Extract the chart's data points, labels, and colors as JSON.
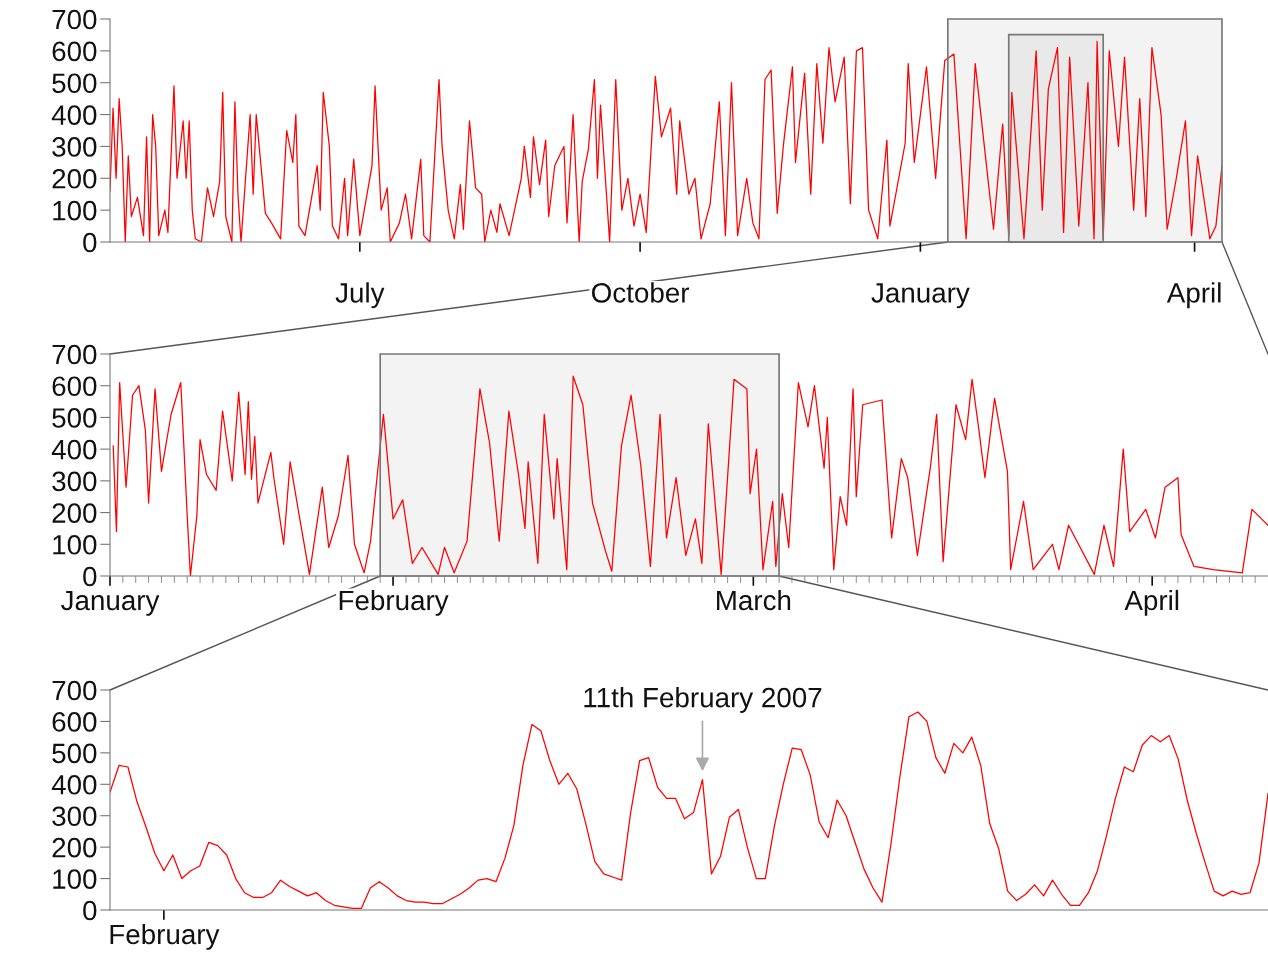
{
  "chart_data": [
    {
      "type": "line",
      "xlim": [
        "2006-04-10",
        "2007-04-10"
      ],
      "ylim": [
        0,
        700
      ],
      "yticks": [
        0,
        100,
        200,
        300,
        400,
        500,
        600,
        700
      ],
      "xticks": [
        {
          "value": "2006-07-01",
          "label": "July"
        },
        {
          "value": "2006-10-01",
          "label": "October"
        },
        {
          "value": "2007-01-01",
          "label": "January"
        },
        {
          "value": "2007-04-01",
          "label": "April"
        }
      ],
      "bands": [
        {
          "axis": "x",
          "from": "2007-01-10",
          "to": "2007-04-10",
          "color": "#f3f3f3"
        },
        {
          "axis": "x",
          "from": "2007-01-30",
          "to": "2007-03-02",
          "color": "#e9e9e9"
        }
      ],
      "series": [
        {
          "color": "#ff0000",
          "x": [
            "2006-04-10",
            "2006-04-11",
            "2006-04-12",
            "2006-04-13",
            "2006-04-14",
            "2006-04-15",
            "2006-04-16",
            "2006-04-17",
            "2006-04-19",
            "2006-04-21",
            "2006-04-22",
            "2006-04-23",
            "2006-04-24",
            "2006-04-25",
            "2006-04-26",
            "2006-04-28",
            "2006-04-29",
            "2006-05-01",
            "2006-05-02",
            "2006-05-04",
            "2006-05-05",
            "2006-05-06",
            "2006-05-07",
            "2006-05-08",
            "2006-05-10",
            "2006-05-12",
            "2006-05-14",
            "2006-05-16",
            "2006-05-17",
            "2006-05-18",
            "2006-05-20",
            "2006-05-21",
            "2006-05-22",
            "2006-05-23",
            "2006-05-26",
            "2006-05-27",
            "2006-05-28",
            "2006-05-31",
            "2006-06-02",
            "2006-06-05",
            "2006-06-07",
            "2006-06-09",
            "2006-06-10",
            "2006-06-11",
            "2006-06-13",
            "2006-06-17",
            "2006-06-18",
            "2006-06-19",
            "2006-06-21",
            "2006-06-22",
            "2006-06-24",
            "2006-06-26",
            "2006-06-27",
            "2006-06-29",
            "2006-07-01",
            "2006-07-05",
            "2006-07-06",
            "2006-07-08",
            "2006-07-10",
            "2006-07-11",
            "2006-07-14",
            "2006-07-16",
            "2006-07-18",
            "2006-07-21",
            "2006-07-22",
            "2006-07-24",
            "2006-07-27",
            "2006-07-28",
            "2006-07-30",
            "2006-08-01",
            "2006-08-03",
            "2006-08-04",
            "2006-08-06",
            "2006-08-08",
            "2006-08-10",
            "2006-08-11",
            "2006-08-13",
            "2006-08-15",
            "2006-08-16",
            "2006-08-19",
            "2006-08-23",
            "2006-08-24",
            "2006-08-26",
            "2006-08-27",
            "2006-08-29",
            "2006-08-31",
            "2006-09-01",
            "2006-09-03",
            "2006-09-06",
            "2006-09-07",
            "2006-09-09",
            "2006-09-11",
            "2006-09-12",
            "2006-09-14",
            "2006-09-16",
            "2006-09-17",
            "2006-09-18",
            "2006-09-21",
            "2006-09-23",
            "2006-09-25",
            "2006-09-27",
            "2006-09-29",
            "2006-10-01",
            "2006-10-03",
            "2006-10-06",
            "2006-10-08",
            "2006-10-11",
            "2006-10-13",
            "2006-10-14",
            "2006-10-17",
            "2006-10-19",
            "2006-10-21",
            "2006-10-24",
            "2006-10-27",
            "2006-10-29",
            "2006-10-31",
            "2006-11-02",
            "2006-11-05",
            "2006-11-07",
            "2006-11-09",
            "2006-11-11",
            "2006-11-13",
            "2006-11-15",
            "2006-11-17",
            "2006-11-20",
            "2006-11-21",
            "2006-11-24",
            "2006-11-26",
            "2006-11-28",
            "2006-11-30",
            "2006-12-02",
            "2006-12-04",
            "2006-12-07",
            "2006-12-09",
            "2006-12-11",
            "2006-12-13",
            "2006-12-15",
            "2006-12-18",
            "2006-12-21",
            "2006-12-22",
            "2006-12-27",
            "2006-12-28",
            "2006-12-30",
            "2007-01-03",
            "2007-01-06",
            "2007-01-09",
            "2007-01-12",
            "2007-01-14",
            "2007-01-16",
            "2007-01-19",
            "2007-01-22",
            "2007-01-25",
            "2007-01-28",
            "2007-01-30",
            "2007-01-31",
            "2007-02-04",
            "2007-02-08",
            "2007-02-10",
            "2007-02-12",
            "2007-02-15",
            "2007-02-17",
            "2007-02-19",
            "2007-02-22",
            "2007-02-25",
            "2007-02-27",
            "2007-02-28",
            "2007-03-02",
            "2007-03-04",
            "2007-03-07",
            "2007-03-09",
            "2007-03-12",
            "2007-03-14",
            "2007-03-16",
            "2007-03-18",
            "2007-03-21",
            "2007-03-23",
            "2007-03-26",
            "2007-03-29",
            "2007-03-31",
            "2007-04-02",
            "2007-04-06",
            "2007-04-08",
            "2007-04-10"
          ],
          "values": [
            160,
            420,
            200,
            450,
            300,
            0,
            270,
            80,
            140,
            20,
            330,
            0,
            400,
            300,
            20,
            100,
            30,
            490,
            200,
            380,
            200,
            380,
            100,
            10,
            0,
            170,
            80,
            190,
            470,
            80,
            0,
            440,
            150,
            0,
            400,
            150,
            400,
            90,
            60,
            10,
            350,
            250,
            400,
            50,
            20,
            240,
            100,
            470,
            300,
            50,
            10,
            200,
            20,
            260,
            20,
            240,
            490,
            100,
            170,
            0,
            60,
            150,
            10,
            260,
            20,
            0,
            510,
            300,
            100,
            10,
            180,
            40,
            380,
            170,
            150,
            0,
            100,
            30,
            120,
            20,
            200,
            300,
            140,
            330,
            180,
            320,
            80,
            240,
            300,
            60,
            400,
            0,
            190,
            290,
            510,
            200,
            430,
            0,
            510,
            100,
            200,
            50,
            150,
            30,
            520,
            330,
            420,
            150,
            380,
            150,
            200,
            10,
            120,
            440,
            20,
            500,
            20,
            200,
            60,
            10,
            510,
            540,
            90,
            300,
            550,
            250,
            530,
            150,
            560,
            310,
            610,
            440,
            580,
            120,
            600,
            610,
            100,
            10,
            320,
            50,
            310,
            560,
            250,
            550,
            200,
            570,
            590,
            300,
            10,
            560,
            300,
            40,
            370,
            20,
            470,
            10,
            600,
            100,
            480,
            610,
            30,
            580,
            50,
            500,
            10,
            630,
            10,
            600,
            300,
            580,
            100,
            450,
            80,
            610,
            400,
            40,
            200,
            380,
            20,
            270,
            10,
            50,
            240
          ]
        }
      ]
    },
    {
      "type": "line",
      "xlim": [
        "2007-01-10",
        "2007-04-10"
      ],
      "ylim": [
        0,
        700
      ],
      "yticks": [
        0,
        100,
        200,
        300,
        400,
        500,
        600,
        700
      ],
      "xticks": [
        {
          "value": "2007-01-10",
          "label": "January"
        },
        {
          "value": "2007-01-11",
          "label": null
        },
        {
          "value": "2007-01-12",
          "label": null
        },
        {
          "value": "2007-01-13",
          "label": null
        },
        {
          "value": "2007-01-14",
          "label": null
        },
        {
          "value": "2007-01-15",
          "label": null
        },
        {
          "value": "2007-01-16",
          "label": null
        },
        {
          "value": "2007-01-17",
          "label": null
        },
        {
          "value": "2007-01-18",
          "label": null
        },
        {
          "value": "2007-01-19",
          "label": null
        },
        {
          "value": "2007-01-20",
          "label": null
        },
        {
          "value": "2007-01-21",
          "label": null
        },
        {
          "value": "2007-01-22",
          "label": null
        },
        {
          "value": "2007-01-23",
          "label": null
        },
        {
          "value": "2007-01-24",
          "label": null
        },
        {
          "value": "2007-01-25",
          "label": null
        },
        {
          "value": "2007-01-26",
          "label": null
        },
        {
          "value": "2007-01-27",
          "label": null
        },
        {
          "value": "2007-01-28",
          "label": null
        },
        {
          "value": "2007-01-29",
          "label": null
        },
        {
          "value": "2007-01-30",
          "label": null
        },
        {
          "value": "2007-01-31",
          "label": null
        },
        {
          "value": "2007-02-01",
          "label": "February"
        },
        {
          "value": "2007-02-02",
          "label": null
        },
        {
          "value": "2007-02-03",
          "label": null
        },
        {
          "value": "2007-02-04",
          "label": null
        },
        {
          "value": "2007-02-05",
          "label": null
        },
        {
          "value": "2007-02-06",
          "label": null
        },
        {
          "value": "2007-02-07",
          "label": null
        },
        {
          "value": "2007-02-08",
          "label": null
        },
        {
          "value": "2007-02-09",
          "label": null
        },
        {
          "value": "2007-02-10",
          "label": null
        },
        {
          "value": "2007-02-11",
          "label": null
        },
        {
          "value": "2007-02-12",
          "label": null
        },
        {
          "value": "2007-02-13",
          "label": null
        },
        {
          "value": "2007-02-14",
          "label": null
        },
        {
          "value": "2007-02-15",
          "label": null
        },
        {
          "value": "2007-02-16",
          "label": null
        },
        {
          "value": "2007-02-17",
          "label": null
        },
        {
          "value": "2007-02-18",
          "label": null
        },
        {
          "value": "2007-02-19",
          "label": null
        },
        {
          "value": "2007-02-20",
          "label": null
        },
        {
          "value": "2007-02-21",
          "label": null
        },
        {
          "value": "2007-02-22",
          "label": null
        },
        {
          "value": "2007-02-23",
          "label": null
        },
        {
          "value": "2007-02-24",
          "label": null
        },
        {
          "value": "2007-02-25",
          "label": null
        },
        {
          "value": "2007-02-26",
          "label": null
        },
        {
          "value": "2007-02-27",
          "label": null
        },
        {
          "value": "2007-02-28",
          "label": null
        },
        {
          "value": "2007-03-01",
          "label": "March"
        },
        {
          "value": "2007-03-02",
          "label": null
        },
        {
          "value": "2007-03-03",
          "label": null
        },
        {
          "value": "2007-03-04",
          "label": null
        },
        {
          "value": "2007-03-05",
          "label": null
        },
        {
          "value": "2007-03-06",
          "label": null
        },
        {
          "value": "2007-03-07",
          "label": null
        },
        {
          "value": "2007-03-08",
          "label": null
        },
        {
          "value": "2007-03-09",
          "label": null
        },
        {
          "value": "2007-03-10",
          "label": null
        },
        {
          "value": "2007-03-11",
          "label": null
        },
        {
          "value": "2007-03-12",
          "label": null
        },
        {
          "value": "2007-03-13",
          "label": null
        },
        {
          "value": "2007-03-14",
          "label": null
        },
        {
          "value": "2007-03-15",
          "label": null
        },
        {
          "value": "2007-03-16",
          "label": null
        },
        {
          "value": "2007-03-17",
          "label": null
        },
        {
          "value": "2007-03-18",
          "label": null
        },
        {
          "value": "2007-03-19",
          "label": null
        },
        {
          "value": "2007-03-20",
          "label": null
        },
        {
          "value": "2007-03-21",
          "label": null
        },
        {
          "value": "2007-03-22",
          "label": null
        },
        {
          "value": "2007-03-23",
          "label": null
        },
        {
          "value": "2007-03-24",
          "label": null
        },
        {
          "value": "2007-03-25",
          "label": null
        },
        {
          "value": "2007-03-26",
          "label": null
        },
        {
          "value": "2007-03-27",
          "label": null
        },
        {
          "value": "2007-03-28",
          "label": null
        },
        {
          "value": "2007-03-29",
          "label": null
        },
        {
          "value": "2007-03-30",
          "label": null
        },
        {
          "value": "2007-03-31",
          "label": null
        },
        {
          "value": "2007-04-01",
          "label": "April"
        },
        {
          "value": "2007-04-02",
          "label": null
        },
        {
          "value": "2007-04-03",
          "label": null
        },
        {
          "value": "2007-04-04",
          "label": null
        },
        {
          "value": "2007-04-05",
          "label": null
        },
        {
          "value": "2007-04-06",
          "label": null
        },
        {
          "value": "2007-04-07",
          "label": null
        },
        {
          "value": "2007-04-08",
          "label": null
        },
        {
          "value": "2007-04-09",
          "label": null
        }
      ],
      "bands": [
        {
          "axis": "x",
          "from": "2007-01-31",
          "to": "2007-03-03",
          "color": "#f3f3f3"
        }
      ],
      "series": [
        {
          "color": "#ff0000",
          "x": [
            "2007-01-10T06:00",
            "2007-01-10T12:00",
            "2007-01-10T18:00",
            "2007-01-11T06:00",
            "2007-01-11T18:00",
            "2007-01-12T06:00",
            "2007-01-12T18:00",
            "2007-01-13T00:00",
            "2007-01-13T12:00",
            "2007-01-14T00:00",
            "2007-01-14T18:00",
            "2007-01-15T12:00",
            "2007-01-16T00:00",
            "2007-01-16T06:00",
            "2007-01-16T18:00",
            "2007-01-17T00:00",
            "2007-01-17T12:00",
            "2007-01-18T06:00",
            "2007-01-18T18:00",
            "2007-01-19T12:00",
            "2007-01-20T00:00",
            "2007-01-20T12:00",
            "2007-01-20T18:00",
            "2007-01-21T00:00",
            "2007-01-21T06:00",
            "2007-01-21T12:00",
            "2007-01-22T12:00",
            "2007-01-22T18:00",
            "2007-01-23T12:00",
            "2007-01-24T00:00",
            "2007-01-24T18:00",
            "2007-01-25T12:00",
            "2007-01-26T12:00",
            "2007-01-27T00:00",
            "2007-01-27T18:00",
            "2007-01-28T12:00",
            "2007-01-29T00:00",
            "2007-01-29T18:00",
            "2007-01-30T06:00",
            "2007-01-31T06:00",
            "2007-02-01T00:00",
            "2007-02-01T18:00",
            "2007-02-02T12:00",
            "2007-02-03T06:00",
            "2007-02-04T12:00",
            "2007-02-05T00:00",
            "2007-02-05T18:00",
            "2007-02-06T18:00",
            "2007-02-07T18:00",
            "2007-02-08T12:00",
            "2007-02-09T06:00",
            "2007-02-10T00:00",
            "2007-02-10T18:00",
            "2007-02-11T06:00",
            "2007-02-11T12:00",
            "2007-02-12T06:00",
            "2007-02-12T18:00",
            "2007-02-13T12:00",
            "2007-02-13T18:00",
            "2007-02-14T12:00",
            "2007-02-15T00:00",
            "2007-02-15T18:00",
            "2007-02-16T12:00",
            "2007-02-17T12:00",
            "2007-02-18T00:00",
            "2007-02-18T18:00",
            "2007-02-19T12:00",
            "2007-02-20T06:00",
            "2007-02-21T00:00",
            "2007-02-21T18:00",
            "2007-02-22T06:00",
            "2007-02-23T00:00",
            "2007-02-23T18:00",
            "2007-02-24T12:00",
            "2007-02-25T00:00",
            "2007-02-25T12:00",
            "2007-02-26T12:00",
            "2007-02-27T12:00",
            "2007-02-28T12:00",
            "2007-02-28T18:00",
            "2007-03-01T06:00",
            "2007-03-01T18:00",
            "2007-03-02T12:00",
            "2007-03-02T18:00",
            "2007-03-03T06:00",
            "2007-03-03T18:00",
            "2007-03-04T12:00",
            "2007-03-05T06:00",
            "2007-03-05T18:00",
            "2007-03-06T12:00",
            "2007-03-06T18:00",
            "2007-03-07T06:00",
            "2007-03-07T18:00",
            "2007-03-08T06:00",
            "2007-03-08T18:00",
            "2007-03-09T00:00",
            "2007-03-09T12:00",
            "2007-03-11T00:00",
            "2007-03-11T18:00",
            "2007-03-12T12:00",
            "2007-03-13T00:00",
            "2007-03-13T18:00",
            "2007-03-14T18:00",
            "2007-03-15T06:00",
            "2007-03-15T18:00",
            "2007-03-16T18:00",
            "2007-03-17T12:00",
            "2007-03-18T00:00",
            "2007-03-18T12:00",
            "2007-03-19T00:00",
            "2007-03-19T18:00",
            "2007-03-20T18:00",
            "2007-03-21T00:00",
            "2007-03-22T00:00",
            "2007-03-22T18:00",
            "2007-03-24T06:00",
            "2007-03-24T18:00",
            "2007-03-25T12:00",
            "2007-03-27T12:00",
            "2007-03-28T06:00",
            "2007-03-29T00:00",
            "2007-03-29T18:00",
            "2007-03-30T06:00",
            "2007-03-31T12:00",
            "2007-04-01T06:00",
            "2007-04-02T00:00",
            "2007-04-03T00:00",
            "2007-04-03T06:00",
            "2007-04-04T06:00",
            "2007-04-05T18:00",
            "2007-04-08T00:00",
            "2007-04-08T18:00",
            "2007-04-09T12:00",
            "2007-04-10T00:00"
          ],
          "values": [
            410,
            140,
            610,
            280,
            570,
            600,
            460,
            230,
            590,
            330,
            510,
            610,
            190,
            0,
            190,
            430,
            320,
            270,
            520,
            300,
            580,
            320,
            550,
            305,
            440,
            230,
            390,
            305,
            100,
            360,
            180,
            5,
            280,
            90,
            190,
            380,
            100,
            10,
            110,
            510,
            180,
            240,
            40,
            90,
            5,
            90,
            10,
            110,
            590,
            420,
            110,
            520,
            320,
            150,
            360,
            40,
            510,
            180,
            370,
            20,
            630,
            540,
            230,
            80,
            15,
            410,
            570,
            350,
            30,
            510,
            120,
            310,
            65,
            180,
            40,
            480,
            5,
            620,
            590,
            260,
            400,
            20,
            235,
            30,
            260,
            90,
            610,
            470,
            600,
            340,
            500,
            20,
            250,
            160,
            590,
            250,
            540,
            555,
            120,
            370,
            310,
            65,
            340,
            510,
            45,
            540,
            430,
            620,
            470,
            310,
            560,
            330,
            20,
            235,
            20,
            100,
            20,
            160,
            5,
            160,
            30,
            400,
            140,
            210,
            120,
            280,
            310,
            130,
            30,
            20,
            10,
            210,
            180,
            160
          ]
        }
      ]
    },
    {
      "type": "line",
      "ylim": [
        0,
        700
      ],
      "yticks": [
        0,
        100,
        200,
        300,
        400,
        500,
        600,
        700
      ],
      "categories": [
        null,
        null,
        null,
        null,
        null,
        null,
        "February",
        null,
        null,
        null,
        null,
        null,
        null,
        null,
        null,
        null,
        null,
        null,
        null,
        null,
        null,
        null,
        null,
        null,
        null,
        null,
        null,
        null,
        null,
        null,
        null,
        null,
        null,
        null,
        null,
        null,
        null,
        null,
        null,
        null,
        null,
        null,
        null,
        null,
        null,
        null,
        null,
        null,
        null,
        null,
        null,
        null,
        null,
        null,
        null,
        null,
        null,
        null,
        null,
        null,
        null,
        null,
        null,
        null,
        null,
        null,
        null,
        null,
        null,
        null,
        null,
        null,
        null,
        null,
        null,
        null,
        null,
        null,
        null,
        null,
        null,
        null,
        null,
        null,
        null,
        null,
        null,
        null,
        null,
        null,
        null,
        null,
        null,
        null,
        null,
        null,
        null,
        null,
        null,
        null,
        null,
        null,
        null,
        null,
        null,
        null,
        null,
        null,
        null,
        null,
        null,
        null,
        null,
        null,
        null,
        null,
        null,
        null,
        null,
        null,
        null,
        null,
        null,
        null,
        null,
        null,
        null,
        null,
        null,
        null
      ],
      "annotations": [
        {
          "text": "11th February 2007",
          "y": 415
        }
      ],
      "series": [
        {
          "color": "#ff0000",
          "values": [
            375,
            460,
            455,
            345,
            265,
            180,
            125,
            175,
            100,
            125,
            140,
            215,
            205,
            175,
            100,
            55,
            40,
            40,
            55,
            95,
            75,
            60,
            45,
            55,
            30,
            15,
            10,
            5,
            5,
            70,
            90,
            70,
            45,
            30,
            25,
            25,
            20,
            20,
            35,
            50,
            70,
            95,
            100,
            90,
            165,
            270,
            460,
            590,
            570,
            475,
            400,
            435,
            385,
            275,
            155,
            115,
            105,
            95,
            310,
            475,
            485,
            390,
            355,
            355,
            290,
            310,
            415,
            115,
            170,
            295,
            320,
            200,
            100,
            100,
            265,
            400,
            515,
            510,
            430,
            280,
            230,
            350,
            300,
            215,
            130,
            70,
            25,
            210,
            425,
            615,
            630,
            600,
            485,
            435,
            530,
            500,
            550,
            460,
            275,
            195,
            60,
            30,
            50,
            80,
            45,
            95,
            50,
            15,
            15,
            55,
            125,
            235,
            355,
            455,
            440,
            525,
            555,
            535,
            555,
            480,
            350,
            245,
            150,
            60,
            45,
            60,
            50,
            55,
            150,
            370
          ]
        }
      ]
    }
  ]
}
